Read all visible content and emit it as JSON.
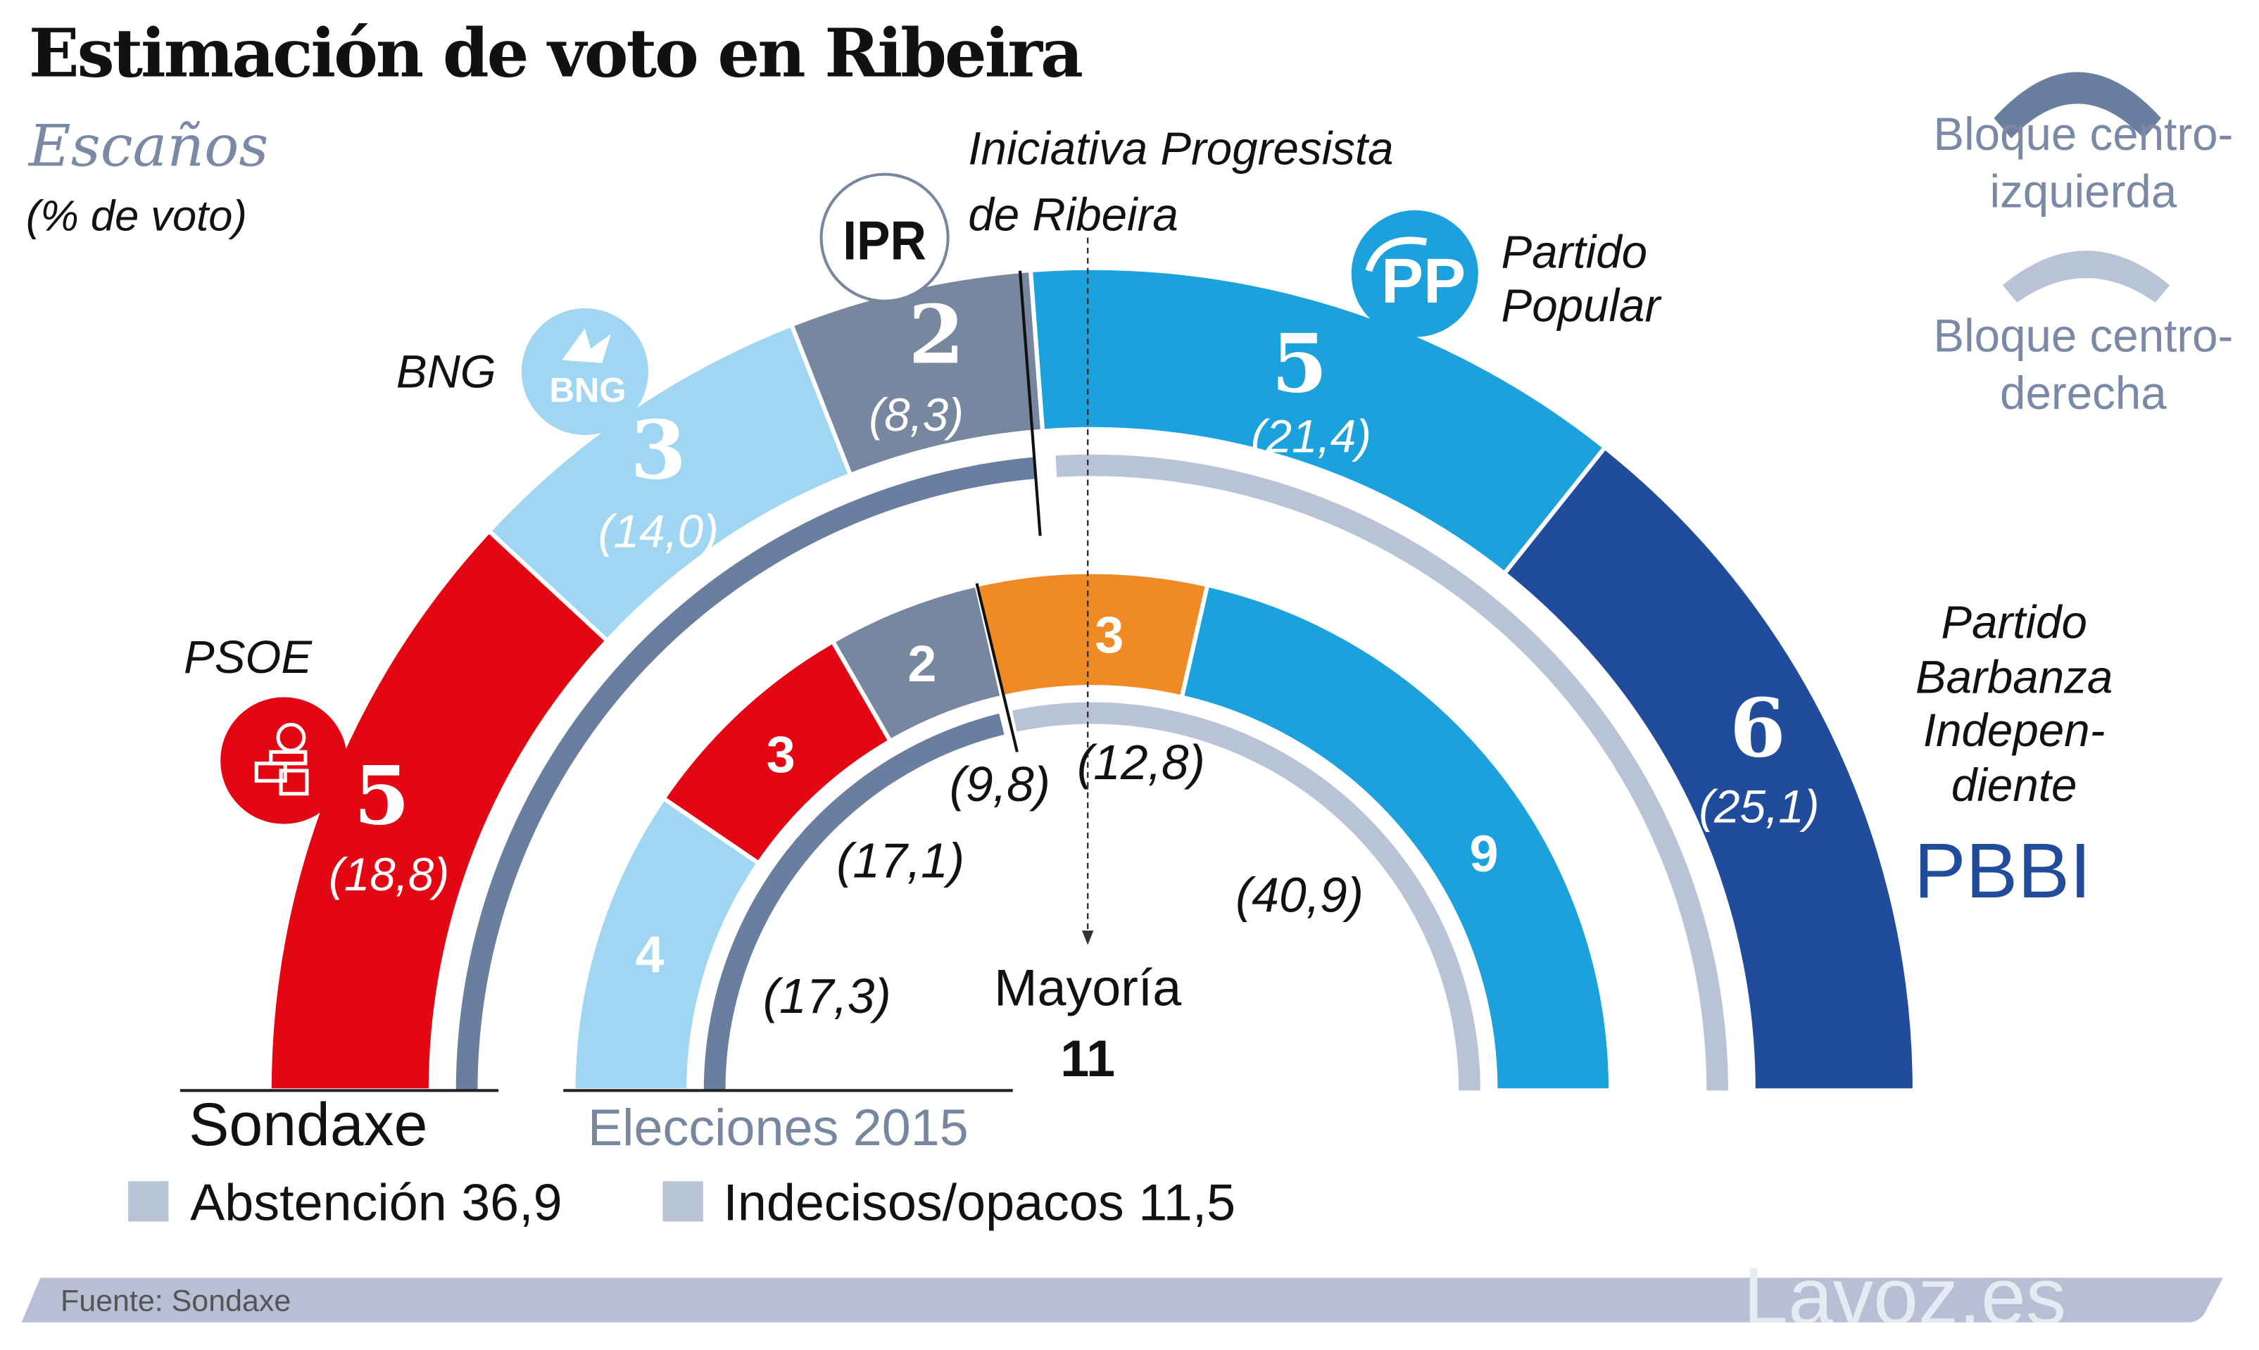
{
  "title": "Estimación de voto en Ribeira",
  "subtitle": "Escaños",
  "subtitle_note": "(% de voto)",
  "colors": {
    "psoe": "#e30613",
    "bng": "#a1d6f3",
    "ipr": "#76879f",
    "pp": "#1ba1dc",
    "pbbi": "#204c9b",
    "orange": "#f08a24",
    "bloque_izq": "#6a7fa0",
    "bloque_der": "#b9c3d6"
  },
  "parties": {
    "psoe": {
      "name": "PSOE",
      "logo": "rose-fist-icon"
    },
    "bng": {
      "name": "BNG",
      "logo_text": "BNG"
    },
    "ipr": {
      "name_line1": "Iniciativa Progresista",
      "name_line2": "de Ribeira",
      "logo_text": "IPR"
    },
    "pp": {
      "name_line1": "Partido",
      "name_line2": "Popular",
      "logo_text": "PP"
    },
    "pbbi": {
      "name_lines": [
        "Partido",
        "Barbanza",
        "Indepen-",
        "diente"
      ],
      "abbr": "PBBI"
    }
  },
  "legend": {
    "izq": [
      "Bloque centro-",
      "izquierda"
    ],
    "der": [
      "Bloque centro-",
      "derecha"
    ]
  },
  "majority": {
    "label": "Mayoría",
    "value": "11"
  },
  "ring_labels": {
    "outer": "Sondaxe",
    "inner": "Elecciones 2015"
  },
  "extras": [
    {
      "label": "Abstención",
      "value": "36,9"
    },
    {
      "label": "Indecisos/opacos",
      "value": "11,5"
    }
  ],
  "footer": {
    "source": "Fuente: Sondaxe",
    "brand": "Lavoz.es"
  },
  "chart_data": [
    {
      "type": "pie",
      "title": "Sondaxe",
      "total_seats": 21,
      "categories": [
        "PSOE",
        "BNG",
        "IPR",
        "PP",
        "PBBI"
      ],
      "values": [
        5,
        3,
        2,
        5,
        6
      ],
      "percent_labels": [
        "(18,8)",
        "(14,0)",
        "(8,3)",
        "(21,4)",
        "(25,1)"
      ],
      "seat_labels": [
        "5",
        "3",
        "2",
        "5",
        "6"
      ],
      "blocks": {
        "centro-izquierda": [
          "PSOE",
          "BNG",
          "IPR"
        ],
        "centro-derecha": [
          "PP",
          "PBBI"
        ]
      }
    },
    {
      "type": "pie",
      "title": "Elecciones 2015",
      "total_seats": 21,
      "categories": [
        "BNG",
        "PSOE",
        "IPR",
        "orange",
        "PP"
      ],
      "values": [
        4,
        3,
        2,
        3,
        9
      ],
      "percent_labels": [
        "(17,3)",
        "(17,1)",
        "(9,8)",
        "(12,8)",
        "(40,9)"
      ],
      "seat_labels": [
        "4",
        "3",
        "2",
        "3",
        "9"
      ],
      "blocks": {
        "centro-izquierda": [
          "BNG",
          "PSOE",
          "IPR"
        ],
        "centro-derecha": [
          "orange",
          "PP"
        ]
      }
    }
  ]
}
